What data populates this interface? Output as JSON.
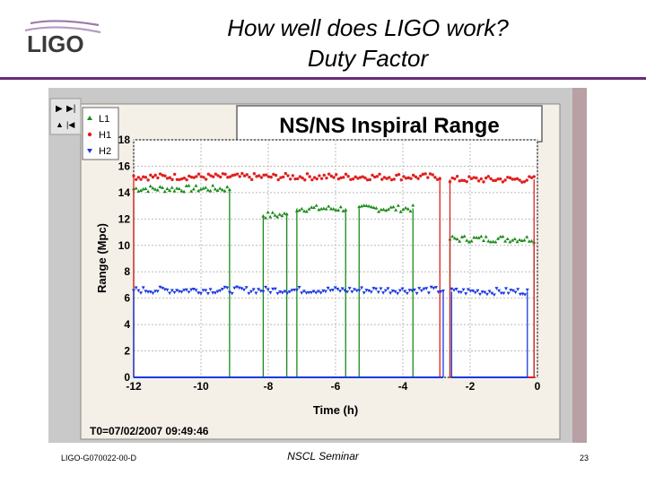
{
  "logo": {
    "text": "LIGO",
    "color": "#3a3a3a"
  },
  "slide": {
    "title_line1": "How well does LIGO work?",
    "title_line2": "Duty Factor",
    "footer_id": "LIGO-G070022-00-D",
    "footer_talk": "NSCL Seminar",
    "page_number": "23",
    "accent_color": "#6a2a7a"
  },
  "chart_data": {
    "type": "scatter",
    "title": "NS/NS Inspiral Range",
    "xlabel": "Time (h)",
    "ylabel": "Range (Mpc)",
    "xlim": [
      -12,
      0
    ],
    "ylim": [
      0,
      18
    ],
    "xticks": [
      "-12",
      "-10",
      "-8",
      "-6",
      "-4",
      "-2",
      "0"
    ],
    "yticks": [
      "0",
      "2",
      "4",
      "6",
      "8",
      "10",
      "12",
      "14",
      "16",
      "18"
    ],
    "grid": true,
    "legend_position": "top-left",
    "t0_label": "T0=07/02/2007 09:49:46",
    "series": [
      {
        "name": "L1",
        "color": "#1a8a1a",
        "marker": "triangle-up",
        "segments": [
          [
            -12.0,
            -9.15,
            14.3
          ],
          [
            -8.15,
            -7.45,
            12.3
          ],
          [
            -7.15,
            -5.7,
            12.8
          ],
          [
            -5.3,
            -3.7,
            12.8
          ],
          [
            -2.6,
            -0.1,
            10.5
          ]
        ]
      },
      {
        "name": "H1",
        "color": "#e02020",
        "marker": "circle",
        "segments": [
          [
            -12.0,
            -2.9,
            15.2
          ],
          [
            -2.6,
            -0.1,
            15.0
          ]
        ]
      },
      {
        "name": "H2",
        "color": "#1a3ae0",
        "marker": "triangle-down",
        "segments": [
          [
            -12.0,
            -2.8,
            6.6
          ],
          [
            -2.55,
            -0.3,
            6.5
          ]
        ]
      }
    ]
  }
}
